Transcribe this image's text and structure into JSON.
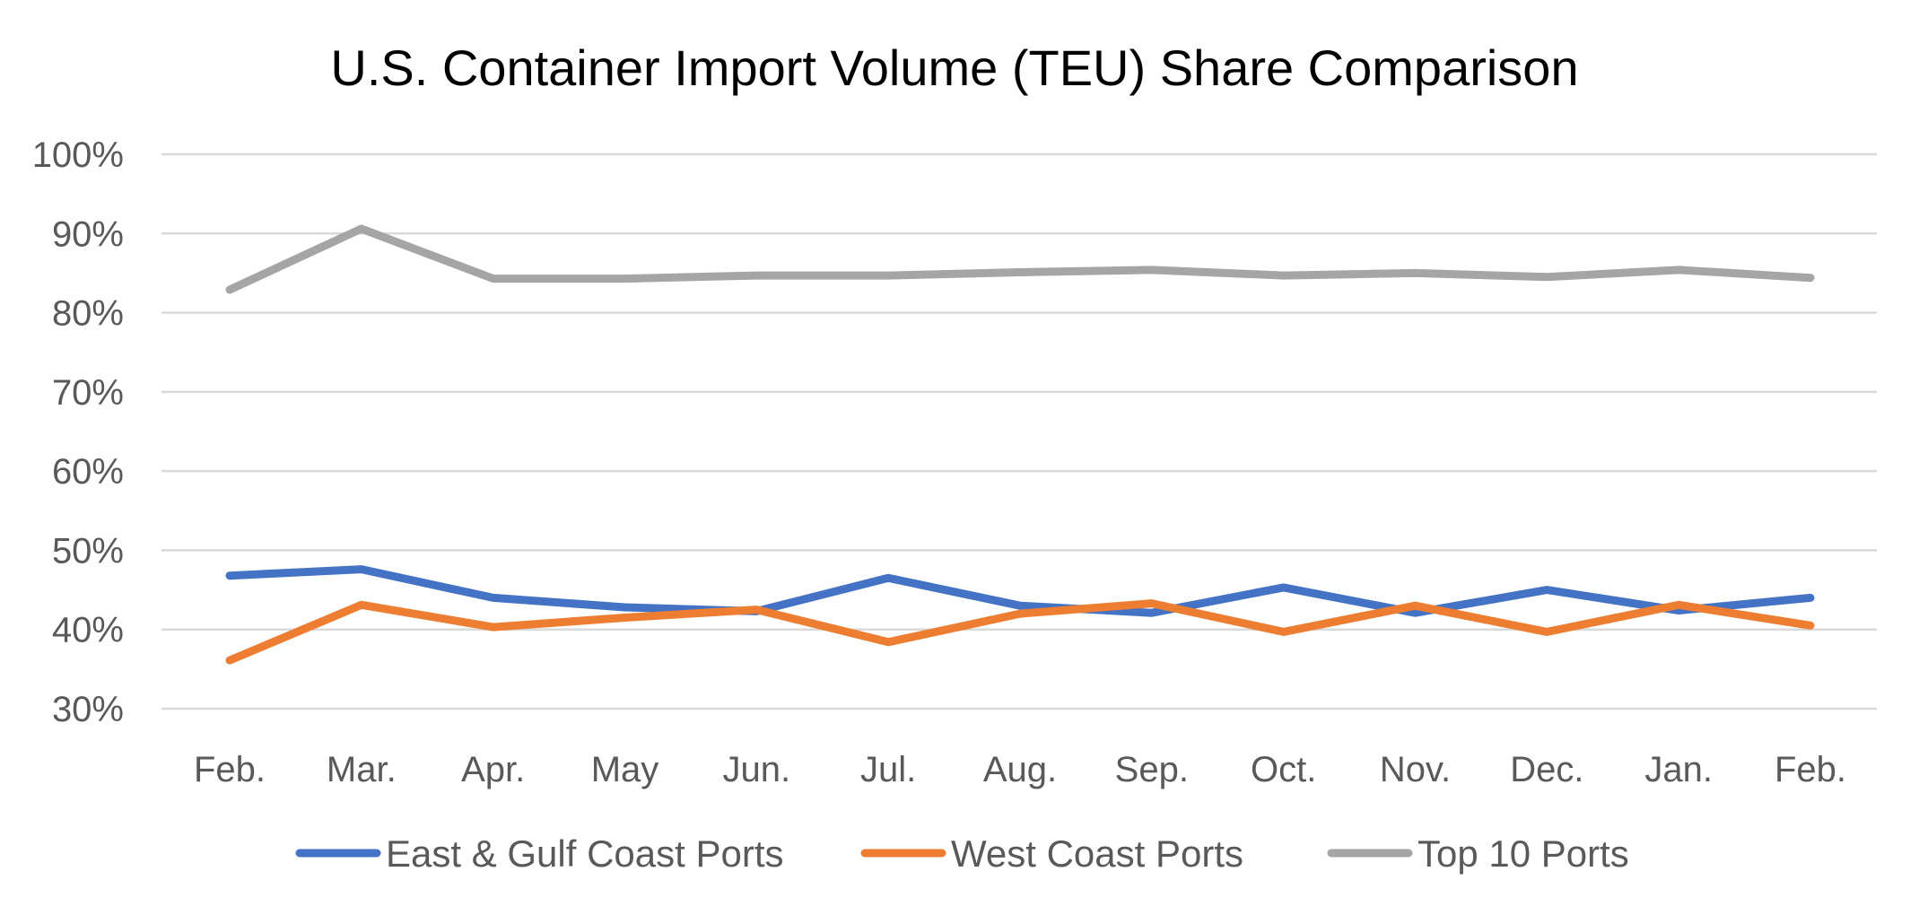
{
  "chart_data": {
    "type": "line",
    "title": "U.S. Container Import Volume (TEU) Share Comparison",
    "xlabel": "",
    "ylabel": "",
    "categories": [
      "Feb.",
      "Mar.",
      "Apr.",
      "May",
      "Jun.",
      "Jul.",
      "Aug.",
      "Sep.",
      "Oct.",
      "Nov.",
      "Dec.",
      "Jan.",
      "Feb."
    ],
    "ylim": [
      0.3,
      1.0
    ],
    "yticks": [
      0.3,
      0.4,
      0.5,
      0.6,
      0.7,
      0.8,
      0.9,
      1.0
    ],
    "ytick_labels": [
      "30%",
      "40%",
      "50%",
      "60%",
      "70%",
      "80%",
      "90%",
      "100%"
    ],
    "grid": true,
    "legend_position": "bottom",
    "series": [
      {
        "name": "East & Gulf Coast Ports",
        "color": "#4472c4",
        "values": [
          0.468,
          0.476,
          0.44,
          0.428,
          0.423,
          0.465,
          0.43,
          0.421,
          0.453,
          0.421,
          0.45,
          0.424,
          0.44
        ]
      },
      {
        "name": "West Coast Ports",
        "color": "#ed7d31",
        "values": [
          0.361,
          0.431,
          0.403,
          0.415,
          0.425,
          0.384,
          0.42,
          0.433,
          0.397,
          0.43,
          0.397,
          0.431,
          0.405
        ]
      },
      {
        "name": "Top 10 Ports",
        "color": "#a5a5a5",
        "values": [
          0.829,
          0.906,
          0.843,
          0.843,
          0.847,
          0.847,
          0.851,
          0.854,
          0.847,
          0.85,
          0.845,
          0.854,
          0.844
        ]
      }
    ]
  }
}
